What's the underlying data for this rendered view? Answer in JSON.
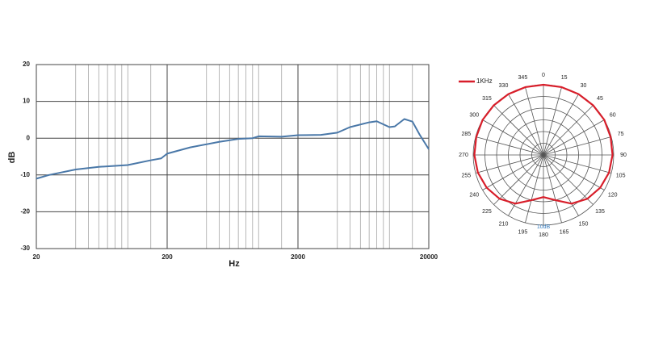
{
  "chart_data": [
    {
      "type": "line",
      "xlabel": "Hz",
      "ylabel": "dB",
      "log_x": true,
      "grid": true,
      "xlim": [
        20,
        20000
      ],
      "ylim": [
        -30,
        20
      ],
      "xticks": [
        20,
        200,
        2000,
        20000
      ],
      "xminor": [
        40,
        50,
        60,
        70,
        80,
        90,
        100,
        150,
        400,
        500,
        600,
        700,
        800,
        900,
        1000,
        1500,
        4000,
        5000,
        6000,
        7000,
        8000,
        9000,
        10000,
        15000
      ],
      "yticks": [
        -30,
        -20,
        -10,
        0,
        10,
        20
      ],
      "x": [
        20,
        25,
        40,
        60,
        100,
        150,
        180,
        200,
        300,
        500,
        700,
        900,
        1000,
        1500,
        2000,
        3000,
        4000,
        5000,
        7000,
        8000,
        10000,
        11000,
        13000,
        15000,
        17000,
        20000
      ],
      "series": [
        {
          "color": "#4a78a8",
          "values": [
            -11,
            -10,
            -8.5,
            -7.8,
            -7.3,
            -6,
            -5.5,
            -4.2,
            -2.5,
            -1,
            -0.2,
            0,
            0.5,
            0.4,
            0.8,
            0.9,
            1.5,
            3,
            4.3,
            4.6,
            3,
            3.2,
            5.2,
            4.5,
            1,
            -3
          ]
        }
      ]
    },
    {
      "type": "polar",
      "annotation": "10dB",
      "rlim": [
        -30,
        0
      ],
      "rticks": [
        -25,
        -20,
        -15,
        -10,
        -5,
        0
      ],
      "angles": [
        0,
        15,
        30,
        45,
        60,
        75,
        90,
        105,
        120,
        135,
        150,
        165,
        180,
        195,
        210,
        225,
        240,
        255,
        270,
        285,
        300,
        315,
        330,
        345
      ],
      "legend": "top-left",
      "series": [
        {
          "name": "1KHz",
          "color": "#d81e2a",
          "values": [
            0,
            0,
            0,
            0,
            0,
            -0.3,
            -0.5,
            -1,
            -2,
            -3.5,
            -6,
            -10,
            -12,
            -10,
            -6,
            -3.5,
            -2,
            -1,
            -0.5,
            -0.3,
            0,
            0,
            0,
            0
          ]
        }
      ]
    }
  ]
}
